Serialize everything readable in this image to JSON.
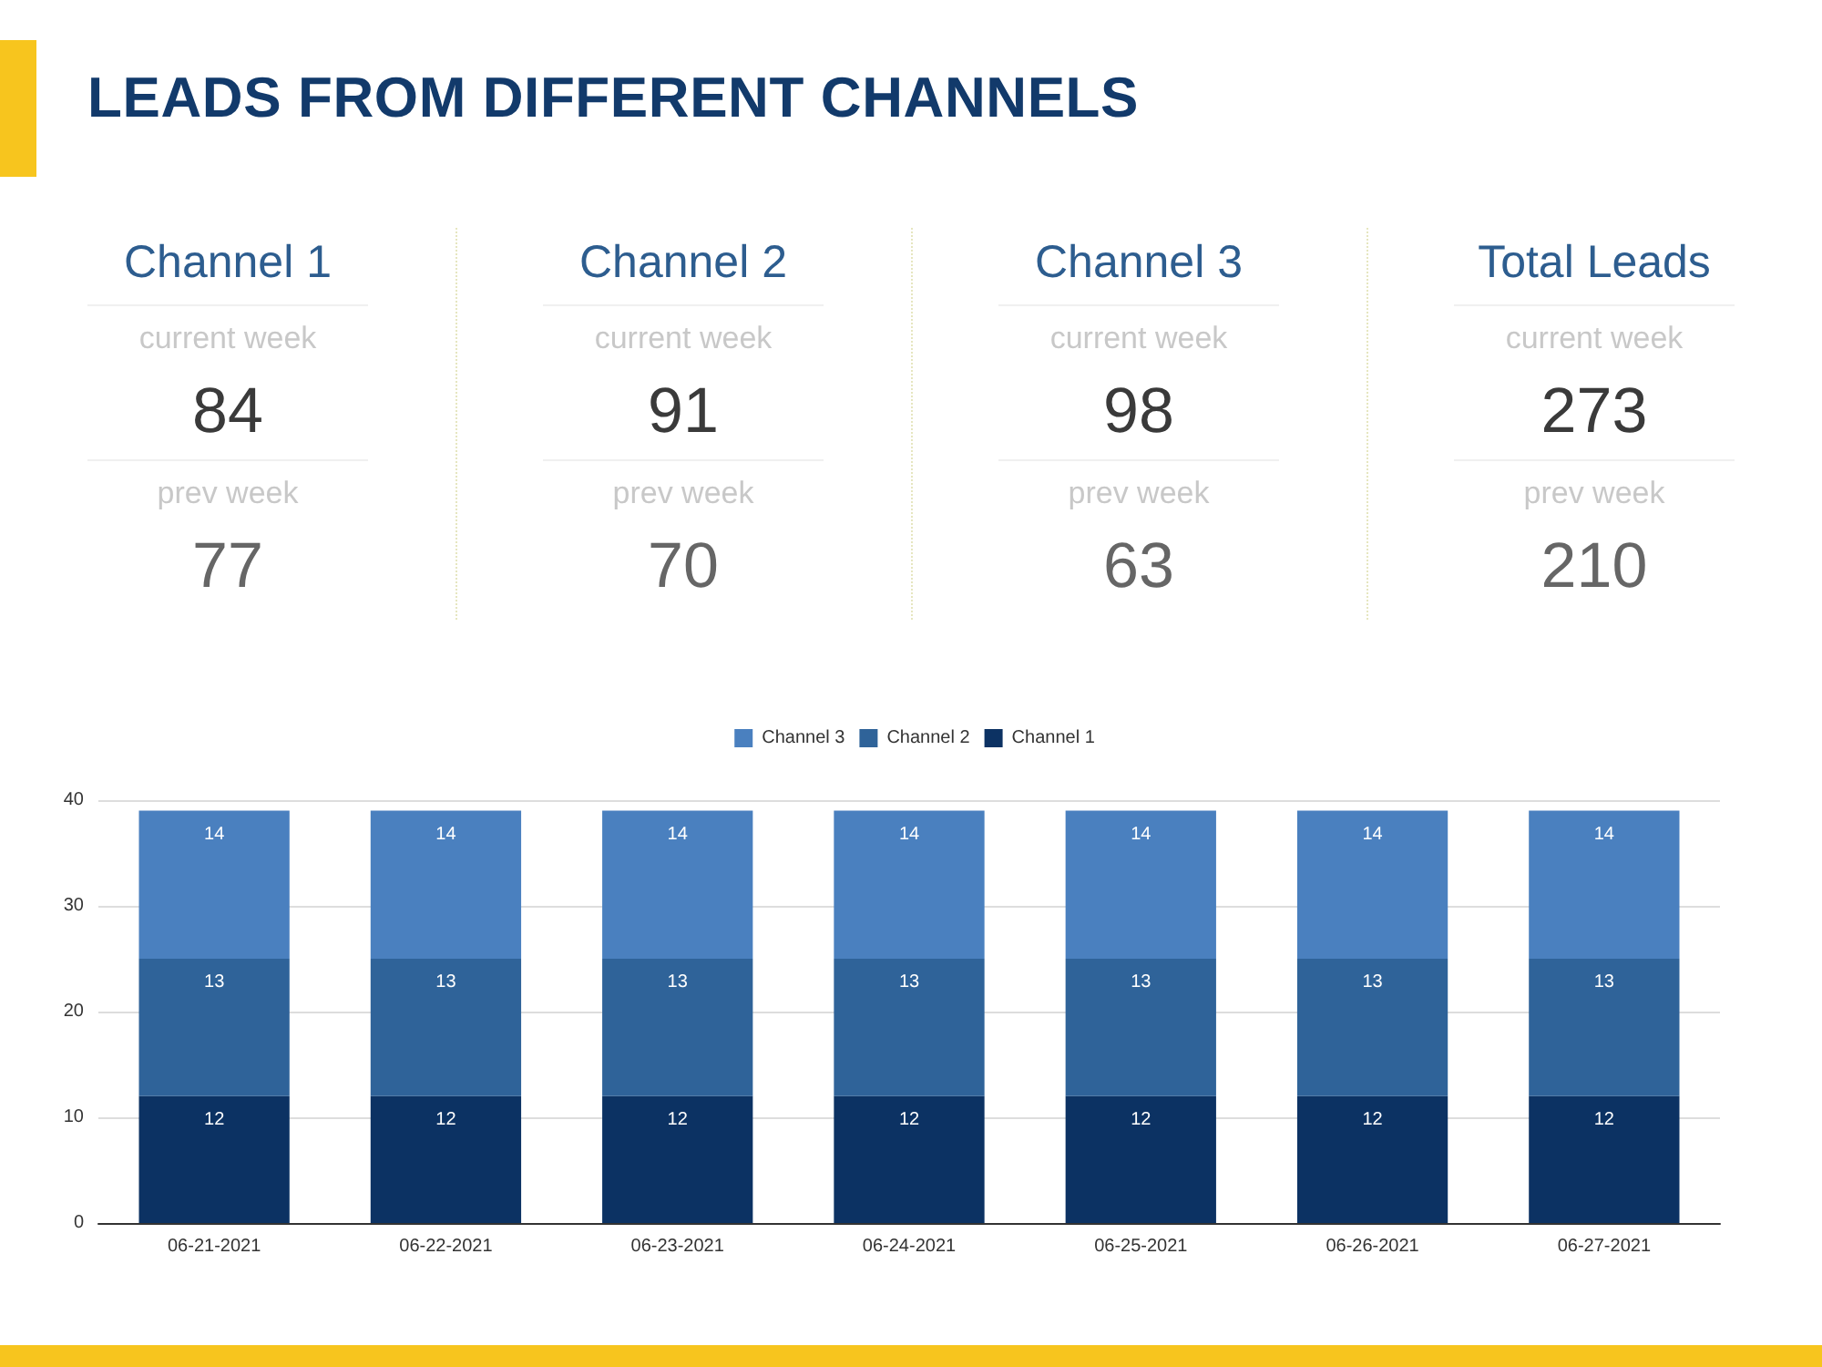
{
  "chart_data": [
    {
      "type": "other",
      "data_labels": true,
      "title": "LEADS FROM DIFFERENT CHANNELS",
      "categories": [
        "Channel 1",
        "Channel 2",
        "Channel 3",
        "Total Leads"
      ],
      "series": [
        {
          "name": "current week",
          "values": [
            84,
            91,
            98,
            273
          ]
        },
        {
          "name": "prev week",
          "values": [
            77,
            70,
            63,
            210
          ]
        }
      ]
    },
    {
      "type": "bar",
      "stacked": true,
      "categories": [
        "06-21-2021",
        "06-22-2021",
        "06-23-2021",
        "06-24-2021",
        "06-25-2021",
        "06-26-2021",
        "06-27-2021"
      ],
      "series": [
        {
          "name": "Channel 1",
          "color": "#0c3263",
          "values": [
            12,
            12,
            12,
            12,
            12,
            12,
            12
          ]
        },
        {
          "name": "Channel 2",
          "color": "#2f6399",
          "values": [
            13,
            13,
            13,
            13,
            13,
            13,
            13
          ]
        },
        {
          "name": "Channel 3",
          "color": "#4a80bf",
          "values": [
            14,
            14,
            14,
            14,
            14,
            14,
            14
          ]
        }
      ],
      "ylim": [
        0,
        40
      ],
      "yticks": [
        0,
        10,
        20,
        30,
        40
      ],
      "grid": "y",
      "legend": "top",
      "data_labels": true
    }
  ]
}
